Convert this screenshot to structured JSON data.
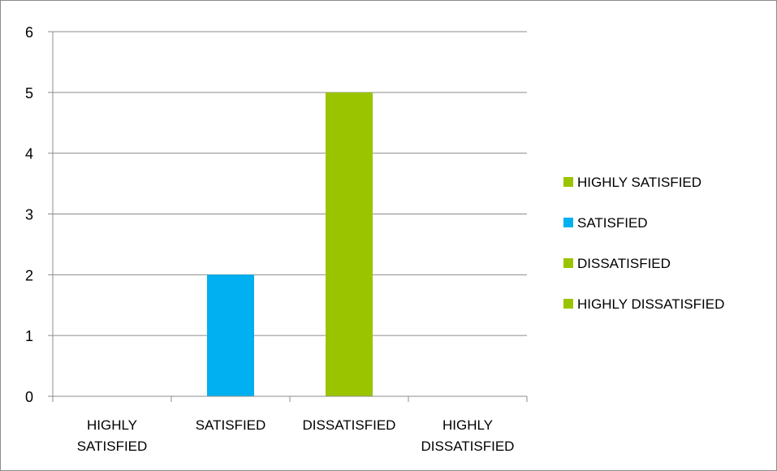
{
  "chart_data": {
    "type": "bar",
    "title": "",
    "xlabel": "",
    "ylabel": "",
    "categories": [
      [
        "HIGHLY",
        "SATISFIED"
      ],
      [
        "SATISFIED"
      ],
      [
        "DISSATISFIED"
      ],
      [
        "HIGHLY",
        "DISSATISFIED"
      ]
    ],
    "values": [
      0,
      2,
      5,
      0
    ],
    "ylim": [
      0,
      6
    ],
    "yticks": [
      "0",
      "1",
      "2",
      "3",
      "4",
      "5",
      "6"
    ],
    "grid": true,
    "legend_position": "right",
    "bar_colors": [
      "#9bc400",
      "#00b0f0",
      "#9bc400",
      "#9bc400"
    ],
    "legend": [
      {
        "label": "HIGHLY SATISFIED",
        "color": "#9bc400"
      },
      {
        "label": "SATISFIED",
        "color": "#00b0f0"
      },
      {
        "label": "DISSATISFIED",
        "color": "#9bc400"
      },
      {
        "label": "HIGHLY DISSATISFIED",
        "color": "#9bc400"
      }
    ]
  }
}
